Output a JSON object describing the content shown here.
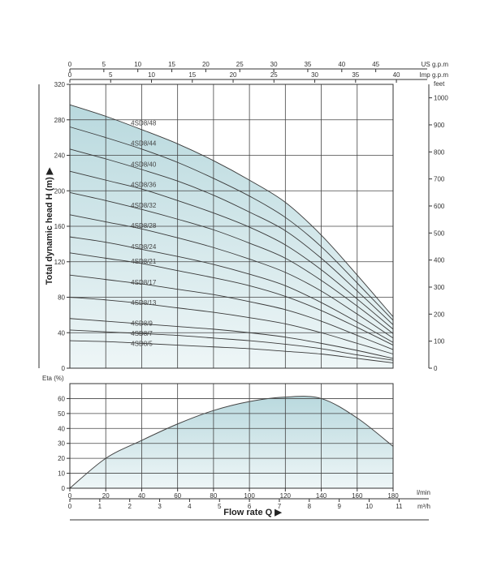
{
  "chart_data": [
    {
      "type": "line",
      "ylabel": "Total dynamic head   H (m)",
      "ylabel_arrow": "▶",
      "x_axis": {
        "unit": "l/min",
        "range": [
          0,
          180
        ]
      },
      "y_axis": {
        "range": [
          0,
          320
        ],
        "ticks": [
          "0",
          "40",
          "80",
          "120",
          "160",
          "200",
          "240",
          "280",
          "320"
        ]
      },
      "top_axis_us": {
        "unit": "US g.p.m",
        "ticks": [
          "0",
          "5",
          "10",
          "15",
          "20",
          "25",
          "30",
          "35",
          "40",
          "45"
        ]
      },
      "top_axis_imp": {
        "unit": "Imp g.p.m",
        "ticks": [
          "0",
          "5",
          "10",
          "15",
          "20",
          "25",
          "30",
          "35",
          "40"
        ]
      },
      "right_axis": {
        "unit": "feet",
        "ticks": [
          "0",
          "100",
          "200",
          "300",
          "400",
          "500",
          "600",
          "700",
          "800",
          "900",
          "1000"
        ]
      },
      "grid": true,
      "filled_envelope": true,
      "series": [
        {
          "name": "4SD8/48",
          "x": [
            0,
            20,
            40,
            60,
            80,
            100,
            120,
            140,
            160,
            180
          ],
          "y": [
            297,
            284,
            269,
            253,
            234,
            212,
            187,
            150,
            105,
            58
          ]
        },
        {
          "name": "4SD8/44",
          "x": [
            0,
            20,
            40,
            60,
            80,
            100,
            120,
            140,
            160,
            180
          ],
          "y": [
            272,
            260,
            247,
            232,
            214,
            194,
            170,
            137,
            96,
            54
          ]
        },
        {
          "name": "4SD8/40",
          "x": [
            0,
            20,
            40,
            60,
            80,
            100,
            120,
            140,
            160,
            180
          ],
          "y": [
            247,
            236,
            224,
            211,
            195,
            176,
            155,
            124,
            87,
            49
          ]
        },
        {
          "name": "4SD8/36",
          "x": [
            0,
            20,
            40,
            60,
            80,
            100,
            120,
            140,
            160,
            180
          ],
          "y": [
            222,
            212,
            202,
            189,
            175,
            159,
            139,
            111,
            78,
            44
          ]
        },
        {
          "name": "4SD8/32",
          "x": [
            0,
            20,
            40,
            60,
            80,
            100,
            120,
            140,
            160,
            180
          ],
          "y": [
            198,
            189,
            179,
            168,
            156,
            141,
            124,
            99,
            70,
            39
          ]
        },
        {
          "name": "4SD8/28",
          "x": [
            0,
            20,
            40,
            60,
            80,
            100,
            120,
            140,
            160,
            180
          ],
          "y": [
            173,
            165,
            157,
            147,
            136,
            123,
            108,
            87,
            61,
            34
          ]
        },
        {
          "name": "4SD8/24",
          "x": [
            0,
            20,
            40,
            60,
            80,
            100,
            120,
            140,
            160,
            180
          ],
          "y": [
            148,
            142,
            134,
            126,
            117,
            106,
            93,
            74,
            52,
            29
          ]
        },
        {
          "name": "4SD8/21",
          "x": [
            0,
            20,
            40,
            60,
            80,
            100,
            120,
            140,
            160,
            180
          ],
          "y": [
            130,
            124,
            118,
            110,
            102,
            93,
            81,
            65,
            46,
            26
          ]
        },
        {
          "name": "4SD8/17",
          "x": [
            0,
            20,
            40,
            60,
            80,
            100,
            120,
            140,
            160,
            180
          ],
          "y": [
            105,
            100,
            95,
            89,
            83,
            75,
            66,
            53,
            37,
            21
          ]
        },
        {
          "name": "4SD8/13",
          "x": [
            0,
            20,
            40,
            60,
            80,
            100,
            120,
            140,
            160,
            180
          ],
          "y": [
            80,
            77,
            73,
            68,
            63,
            57,
            50,
            40,
            28,
            16
          ]
        },
        {
          "name": "4SD8/9",
          "x": [
            0,
            20,
            40,
            60,
            80,
            100,
            120,
            140,
            160,
            180
          ],
          "y": [
            56,
            53,
            50,
            47,
            44,
            40,
            35,
            28,
            20,
            11
          ]
        },
        {
          "name": "4SD8/7",
          "x": [
            0,
            20,
            40,
            60,
            80,
            100,
            120,
            140,
            160,
            180
          ],
          "y": [
            43,
            41,
            39,
            37,
            34,
            31,
            27,
            22,
            15,
            9
          ]
        },
        {
          "name": "4SD8/5",
          "x": [
            0,
            20,
            40,
            60,
            80,
            100,
            120,
            140,
            160,
            180
          ],
          "y": [
            31,
            30,
            28,
            26,
            24,
            22,
            19,
            16,
            11,
            6
          ]
        }
      ]
    },
    {
      "type": "area",
      "ylabel": "Eta (%)",
      "x_axis": {
        "unit": "l/min",
        "range": [
          0,
          180
        ],
        "ticks": [
          "0",
          "20",
          "40",
          "60",
          "80",
          "100",
          "120",
          "140",
          "160",
          "180"
        ]
      },
      "x2_axis": {
        "unit": "m³/h",
        "ticks": [
          "0",
          "1",
          "2",
          "3",
          "4",
          "5",
          "6",
          "7",
          "8",
          "9",
          "10",
          "11"
        ]
      },
      "y_axis": {
        "range": [
          0,
          70
        ],
        "ticks": [
          "0",
          "10",
          "20",
          "30",
          "40",
          "50",
          "60"
        ]
      },
      "xlabel": "Flow rate  Q",
      "xlabel_arrow": "▶",
      "grid": true,
      "series": [
        {
          "name": "",
          "x": [
            0,
            20,
            40,
            60,
            80,
            100,
            120,
            140,
            160,
            180
          ],
          "y": [
            0,
            20,
            32,
            43,
            52,
            58,
            61,
            60,
            47,
            28
          ]
        }
      ]
    }
  ]
}
